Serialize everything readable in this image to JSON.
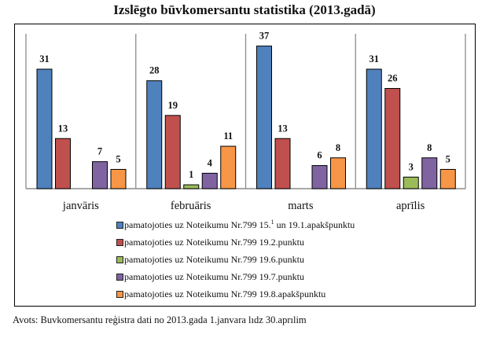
{
  "chart_data": {
    "type": "bar",
    "title": "Izslēgto būvkomersantu statistika (2013.gadā)",
    "categories": [
      "janvāris",
      "februāris",
      "marts",
      "aprīlis"
    ],
    "series": [
      {
        "name": "pamatojoties uz Noteikumu Nr.799 15.¹ un 19.1.apakšpunktu",
        "color": "#4F81BD",
        "values": [
          31,
          28,
          37,
          31
        ]
      },
      {
        "name": "pamatojoties uz Noteikumu Nr.799 19.2.punktu",
        "color": "#C0504D",
        "values": [
          13,
          19,
          13,
          26
        ]
      },
      {
        "name": "pamatojoties uz Noteikumu Nr.799 19.6.punktu",
        "color": "#9BBB59",
        "values": [
          null,
          1,
          null,
          3
        ]
      },
      {
        "name": "pamatojoties uz Noteikumu Nr.799 19.7.punktu",
        "color": "#8064A2",
        "values": [
          7,
          4,
          6,
          8
        ]
      },
      {
        "name": "pamatojoties uz Noteikumu Nr.799 19.8.apakšpunktu",
        "color": "#F79646",
        "values": [
          5,
          11,
          8,
          5
        ]
      }
    ],
    "xlabel": "",
    "ylabel": "",
    "ylim": [
      0,
      40
    ],
    "grid": "vertical category separators",
    "legend": "bottom",
    "data_labels": true,
    "source": "Avots: Buvkomersantu reģistra dati no 2013.gada 1.janvara lıdz 30.aprılim"
  }
}
